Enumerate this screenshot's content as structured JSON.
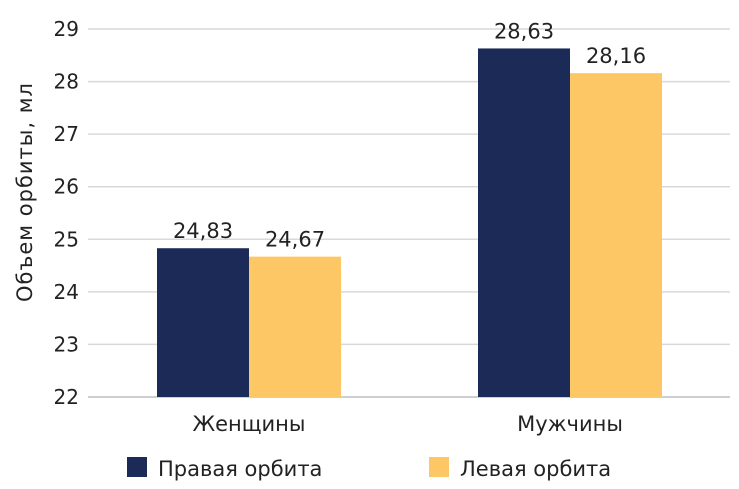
{
  "chart_data": {
    "type": "bar",
    "title": "",
    "xlabel": "",
    "ylabel": "Объем орбиты, мл",
    "categories": [
      "Женщины",
      "Мужчины"
    ],
    "series": [
      {
        "name": "Правая орбита",
        "values": [
          24.83,
          28.63
        ],
        "labels": [
          "24,83",
          "28,63"
        ],
        "color": "#1b2a57"
      },
      {
        "name": "Левая орбита",
        "values": [
          24.67,
          28.16
        ],
        "labels": [
          "24,67",
          "28,16"
        ],
        "color": "#fec766"
      }
    ],
    "ylim": [
      22,
      29
    ],
    "yticks": [
      "22",
      "23",
      "24",
      "25",
      "26",
      "27",
      "28",
      "29"
    ],
    "grid": true,
    "legend": "bottom"
  }
}
